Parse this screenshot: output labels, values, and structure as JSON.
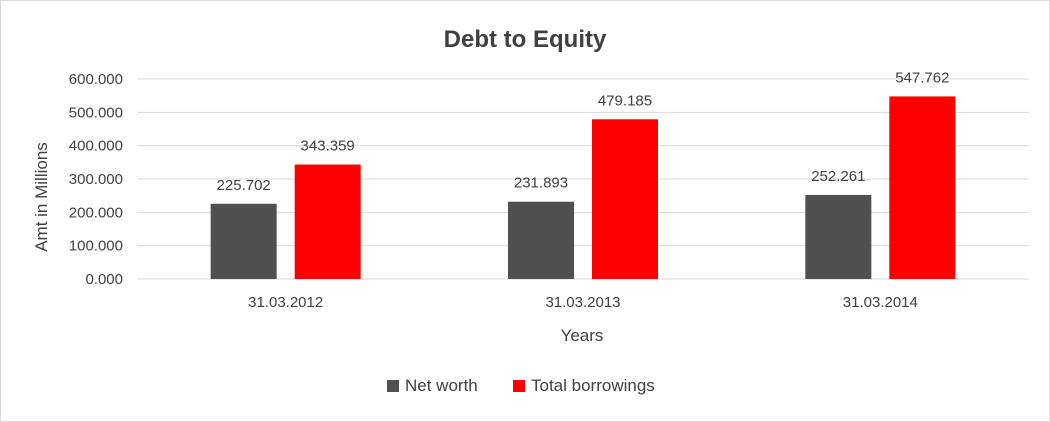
{
  "chart_data": {
    "type": "bar",
    "title": "Debt to Equity",
    "xlabel": "Years",
    "ylabel": "Amt in Millions",
    "categories": [
      "31.03.2012",
      "31.03.2013",
      "31.03.2014"
    ],
    "series": [
      {
        "name": "Net worth",
        "color": "#505050",
        "values": [
          225.702,
          231.893,
          252.261
        ],
        "labels": [
          "225.702",
          "231.893",
          "252.261"
        ]
      },
      {
        "name": "Total borrowings",
        "color": "#ff0000",
        "values": [
          343.359,
          479.185,
          547.762
        ],
        "labels": [
          "343.359",
          "479.185",
          "547.762"
        ]
      }
    ],
    "ylim": [
      0,
      600
    ],
    "yticks": [
      0,
      100,
      200,
      300,
      400,
      500,
      600
    ],
    "ytick_labels": [
      "0.000",
      "100.000",
      "200.000",
      "300.000",
      "400.000",
      "500.000",
      "600.000"
    ],
    "grid": true,
    "gridline_color": "#d9d9d9",
    "legend_position": "bottom"
  }
}
